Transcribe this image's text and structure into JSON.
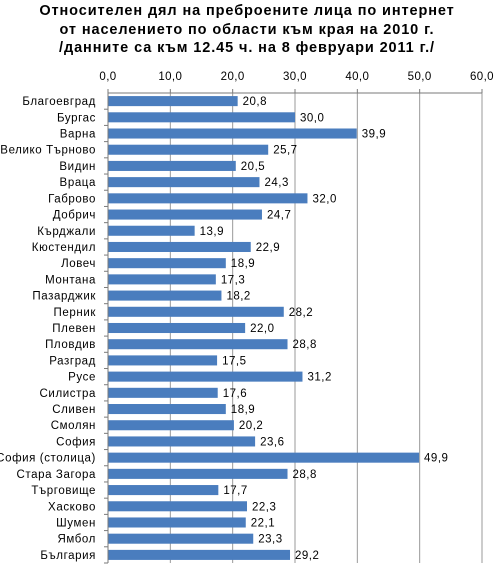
{
  "chart_data": {
    "type": "bar",
    "orientation": "horizontal",
    "title_lines": [
      "Относителен дял на преброените лица по интернет",
      "от населението по области към края на 2010 г.",
      "/данните са към 12.45 ч. на 8 февруари 2011 г./"
    ],
    "categories": [
      "Благоевград",
      "Бургас",
      "Варна",
      "Велико Търново",
      "Видин",
      "Враца",
      "Габрово",
      "Добрич",
      "Кърджали",
      "Кюстендил",
      "Ловеч",
      "Монтана",
      "Пазарджик",
      "Перник",
      "Плевен",
      "Пловдив",
      "Разград",
      "Русе",
      "Силистра",
      "Сливен",
      "Смолян",
      "София",
      "София (столица)",
      "Стара Загора",
      "Търговище",
      "Хасково",
      "Шумен",
      "Ямбол",
      "България"
    ],
    "values": [
      20.8,
      30.0,
      39.9,
      25.7,
      20.5,
      24.3,
      32.0,
      24.7,
      13.9,
      22.9,
      18.9,
      17.3,
      18.2,
      28.2,
      22.0,
      28.8,
      17.5,
      31.2,
      17.6,
      18.9,
      20.2,
      23.6,
      49.9,
      28.8,
      17.7,
      22.3,
      22.1,
      23.3,
      29.2
    ],
    "value_labels": [
      "20,8",
      "30,0",
      "39,9",
      "25,7",
      "20,5",
      "24,3",
      "32,0",
      "24,7",
      "13,9",
      "22,9",
      "18,9",
      "17,3",
      "18,2",
      "28,2",
      "22,0",
      "28,8",
      "17,5",
      "31,2",
      "17,6",
      "18,9",
      "20,2",
      "23,6",
      "49,9",
      "28,8",
      "17,7",
      "22,3",
      "22,1",
      "23,3",
      "29,2"
    ],
    "xlim": [
      0,
      60
    ],
    "x_ticks": [
      "0,0",
      "10,0",
      "20,0",
      "30,0",
      "40,0",
      "50,0",
      "60,0"
    ],
    "axis_position": "top",
    "grid": true,
    "legend": "none",
    "colors": {
      "bar": "#4a7dbe",
      "grid": "#9a9a9a",
      "axis": "#7a7a7a"
    }
  }
}
